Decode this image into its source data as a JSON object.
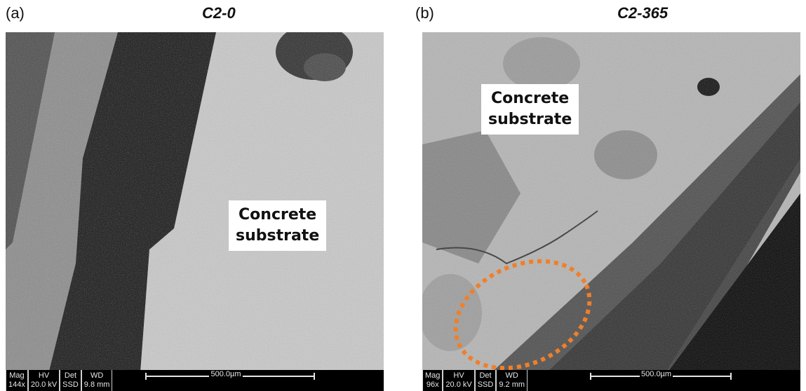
{
  "panels": [
    {
      "letter": "(a)",
      "title": "C2-0",
      "label_line1": "Concrete",
      "label_line2": "substrate",
      "databar": {
        "mag_label": "Mag",
        "mag_value": "144x",
        "hv_label": "HV",
        "hv_value": "20.0 kV",
        "det_label": "Det",
        "det_value": "SSD",
        "wd_label": "WD",
        "wd_value": "9.8 mm",
        "scale_text": "500.0µm"
      }
    },
    {
      "letter": "(b)",
      "title": "C2-365",
      "label_line1": "Concrete",
      "label_line2": "substrate",
      "annotation_color": "#f07f2a",
      "databar": {
        "mag_label": "Mag",
        "mag_value": "96x",
        "hv_label": "HV",
        "hv_value": "20.0 kV",
        "det_label": "Det",
        "det_value": "SSD",
        "wd_label": "WD",
        "wd_value": "9.2 mm",
        "scale_text": "500.0µm"
      }
    }
  ]
}
